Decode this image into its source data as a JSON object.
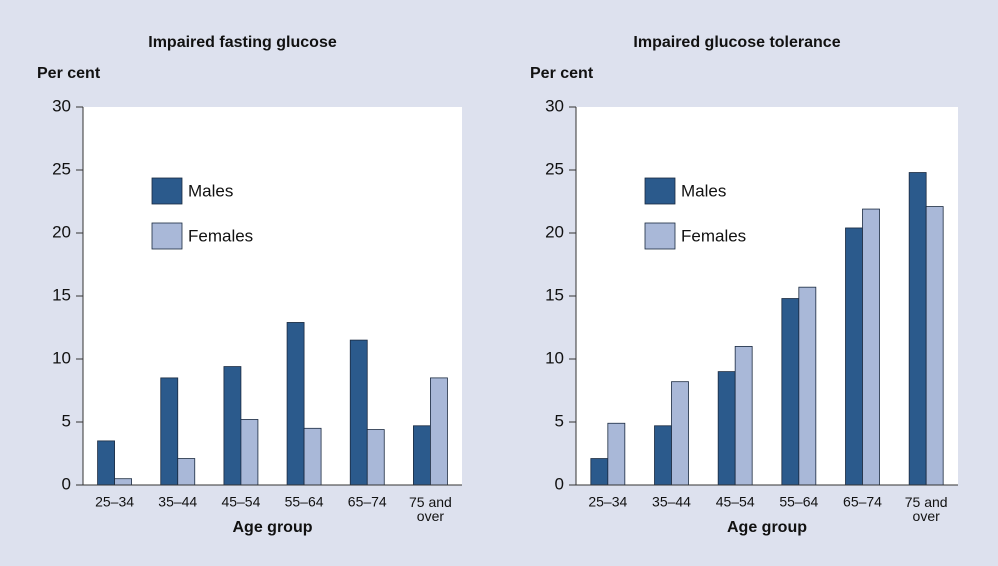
{
  "chart_data": [
    {
      "type": "bar",
      "title": "Impaired fasting glucose",
      "y_label": "Per cent",
      "x_label": "Age group",
      "categories": [
        "25–34",
        "35–44",
        "45–54",
        "55–64",
        "65–74",
        "75 and over"
      ],
      "series": [
        {
          "name": "Males",
          "color": "#2b5a8c",
          "values": [
            3.5,
            8.5,
            9.4,
            12.9,
            11.5,
            4.7
          ]
        },
        {
          "name": "Females",
          "color": "#a9b8d8",
          "values": [
            0.5,
            2.1,
            5.2,
            4.5,
            4.4,
            8.5
          ]
        }
      ],
      "ylim": [
        0,
        30
      ],
      "yticks": [
        0,
        5,
        10,
        15,
        20,
        25,
        30
      ],
      "legend": "upper left"
    },
    {
      "type": "bar",
      "title": "Impaired glucose tolerance",
      "y_label": "Per cent",
      "x_label": "Age group",
      "categories": [
        "25–34",
        "35–44",
        "45–54",
        "55–64",
        "65–74",
        "75 and over"
      ],
      "series": [
        {
          "name": "Males",
          "color": "#2b5a8c",
          "values": [
            2.1,
            4.7,
            9.0,
            14.8,
            20.4,
            24.8
          ]
        },
        {
          "name": "Females",
          "color": "#a9b8d8",
          "values": [
            4.9,
            8.2,
            11.0,
            15.7,
            21.9,
            22.1
          ]
        }
      ],
      "ylim": [
        0,
        30
      ],
      "yticks": [
        0,
        5,
        10,
        15,
        20,
        25,
        30
      ],
      "legend": "upper left"
    }
  ]
}
